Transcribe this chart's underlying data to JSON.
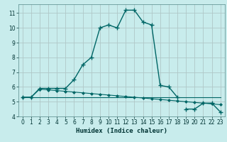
{
  "xlabel": "Humidex (Indice chaleur)",
  "bg_color": "#c8ecec",
  "grid_color": "#b0c8c8",
  "line_color": "#006666",
  "xlim": [
    -0.5,
    23.5
  ],
  "ylim": [
    4.0,
    11.6
  ],
  "xticks": [
    0,
    1,
    2,
    3,
    4,
    5,
    6,
    7,
    8,
    9,
    10,
    11,
    12,
    13,
    14,
    15,
    16,
    17,
    18,
    19,
    20,
    21,
    22,
    23
  ],
  "yticks": [
    4,
    5,
    6,
    7,
    8,
    9,
    10,
    11
  ],
  "series1_x": [
    0,
    1,
    2,
    3,
    4,
    5,
    6,
    7,
    8,
    9,
    10,
    11,
    12,
    13,
    14,
    15,
    16,
    17,
    18
  ],
  "series1_y": [
    5.3,
    5.3,
    5.9,
    5.9,
    5.9,
    5.9,
    6.5,
    7.5,
    8.0,
    10.0,
    10.2,
    10.0,
    11.2,
    11.2,
    10.4,
    10.2,
    6.1,
    6.0,
    5.3
  ],
  "series2_x": [
    0,
    1,
    2,
    3,
    4,
    5,
    6,
    7,
    8,
    9,
    10,
    11,
    12,
    13,
    14,
    15,
    16,
    17,
    18,
    19,
    20,
    21,
    22,
    23
  ],
  "series2_y": [
    5.3,
    5.3,
    5.85,
    5.8,
    5.75,
    5.7,
    5.65,
    5.6,
    5.55,
    5.5,
    5.45,
    5.4,
    5.35,
    5.3,
    5.25,
    5.2,
    5.15,
    5.1,
    5.05,
    5.0,
    4.95,
    4.9,
    4.85,
    4.8
  ],
  "series3_x": [
    0,
    18,
    23
  ],
  "series3_y": [
    5.3,
    5.3,
    5.3
  ],
  "series4_x": [
    19,
    20,
    21,
    22,
    23
  ],
  "series4_y": [
    4.5,
    4.5,
    4.9,
    4.9,
    4.3
  ]
}
